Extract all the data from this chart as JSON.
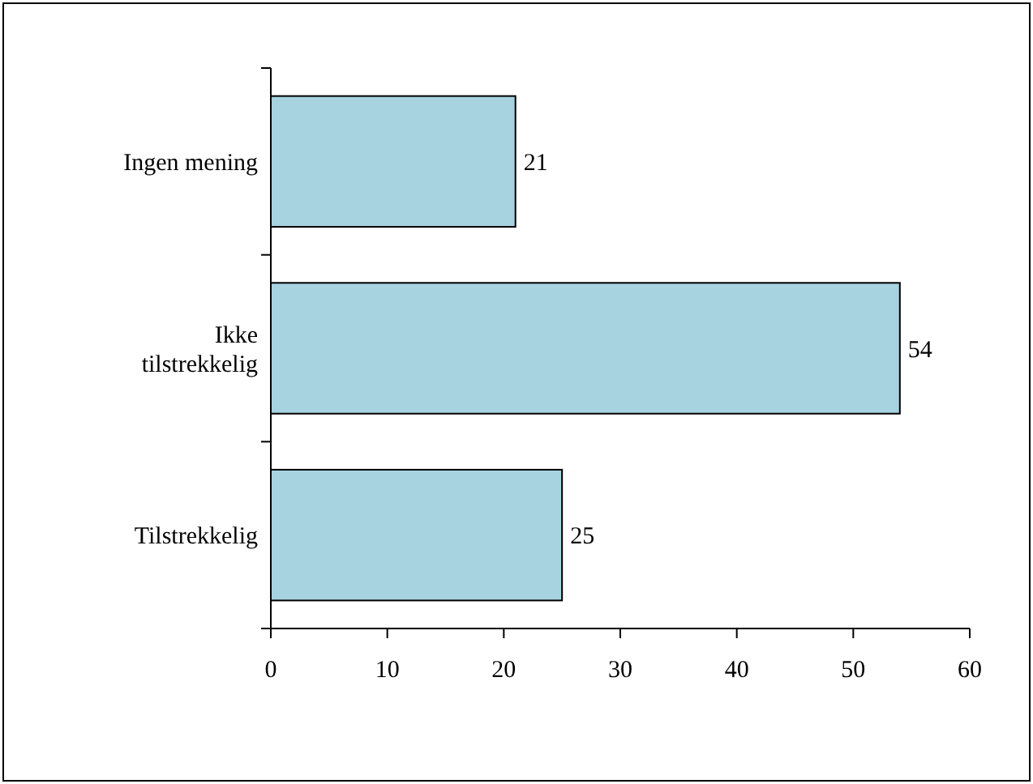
{
  "chart_data": {
    "type": "bar",
    "orientation": "horizontal",
    "categories": [
      "Ingen mening",
      "Ikke tilstrekkelig",
      "Tilstrekkelig"
    ],
    "values": [
      21,
      54,
      25
    ],
    "color": "#a6d3df",
    "xlim": [
      0,
      60
    ],
    "xticks": [
      0,
      10,
      20,
      30,
      40,
      50,
      60
    ],
    "data_labels": true
  }
}
